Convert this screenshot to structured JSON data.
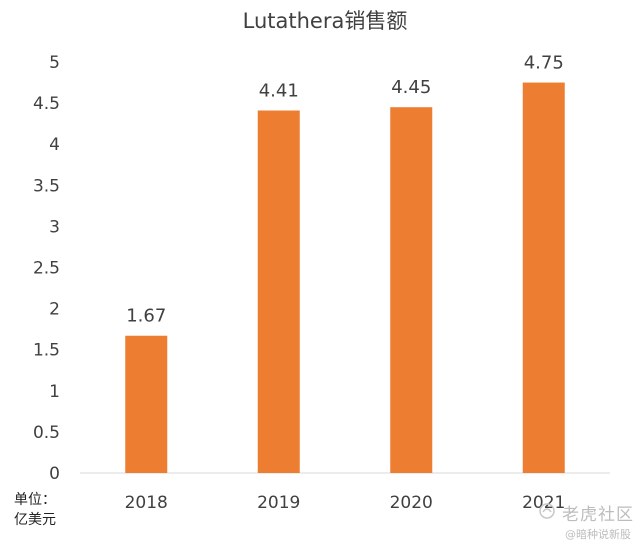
{
  "chart_data": {
    "type": "bar",
    "title": "Lutathera销售额",
    "categories": [
      "2018",
      "2019",
      "2020",
      "2021"
    ],
    "values": [
      1.67,
      4.41,
      4.45,
      4.75
    ],
    "data_labels": [
      "1.67",
      "4.41",
      "4.45",
      "4.75"
    ],
    "ylim": [
      0,
      5
    ],
    "yticks": [
      "0",
      "0.5",
      "1",
      "1.5",
      "2",
      "2.5",
      "3",
      "3.5",
      "4",
      "4.5",
      "5"
    ],
    "ytick_values": [
      0,
      0.5,
      1,
      1.5,
      2,
      2.5,
      3,
      3.5,
      4,
      4.5,
      5
    ],
    "xlabel": "",
    "ylabel": "",
    "unit_label": [
      "单位：",
      "亿美元"
    ],
    "grid": false,
    "bar_color": "#ED7D31"
  },
  "watermark": {
    "brand": "老虎社区",
    "handle": "@暗种说新股"
  }
}
